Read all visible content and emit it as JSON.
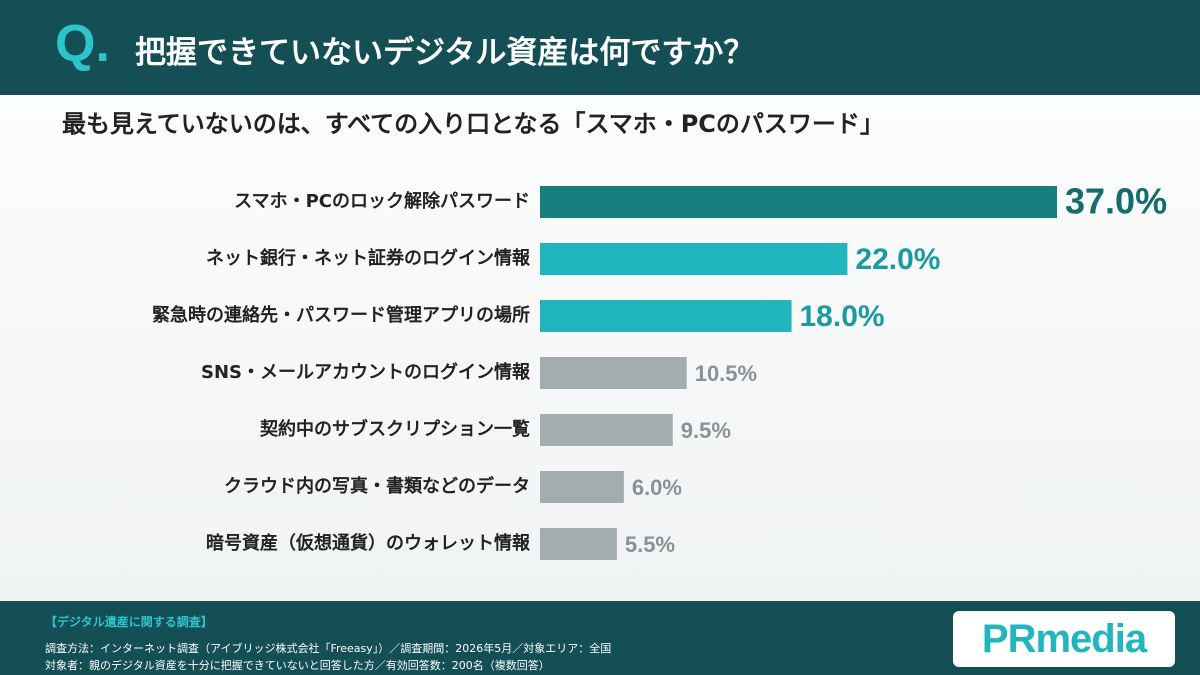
{
  "header": {
    "q": "Q.",
    "title": "把握できていないデジタル資産は何ですか？"
  },
  "chart_data": {
    "type": "bar",
    "orientation": "horizontal",
    "subtitle": "最も見えていないのは、すべての入り口となる「スマホ・PCのパスワード」",
    "categories": [
      "スマホ・PCのロック解除パスワード",
      "ネット銀行・ネット証券のログイン情報",
      "緊急時の連絡先・パスワード管理アプリの場所",
      "SNS・メールアカウントのログイン情報",
      "契約中のサブスクリプション一覧",
      "クラウド内の写真・書類などのデータ",
      "暗号資産（仮想通貨）のウォレット情報"
    ],
    "values": [
      37.0,
      22.0,
      18.0,
      10.5,
      9.5,
      6.0,
      5.5
    ],
    "value_labels": [
      "37.0%",
      "22.0%",
      "18.0%",
      "10.5%",
      "9.5%",
      "6.0%",
      "5.5%"
    ],
    "colors": [
      "#177f80",
      "#21b5bd",
      "#21b5bd",
      "#a3acaf",
      "#a3acaf",
      "#a3acaf",
      "#a3acaf"
    ]
  },
  "footer": {
    "heading": "【デジタル遺産に関する調査】",
    "lines": [
      "調査方法：インターネット調査（アイブリッジ株式会社「Freeasy」）／調査期間：2026年5月／対象エリア：全国",
      "対象者：親のデジタル資産を十分に把握できていないと回答した方／有効回答数：200名（複数回答）"
    ],
    "logo_pr": "PR",
    "logo_media": "media"
  }
}
